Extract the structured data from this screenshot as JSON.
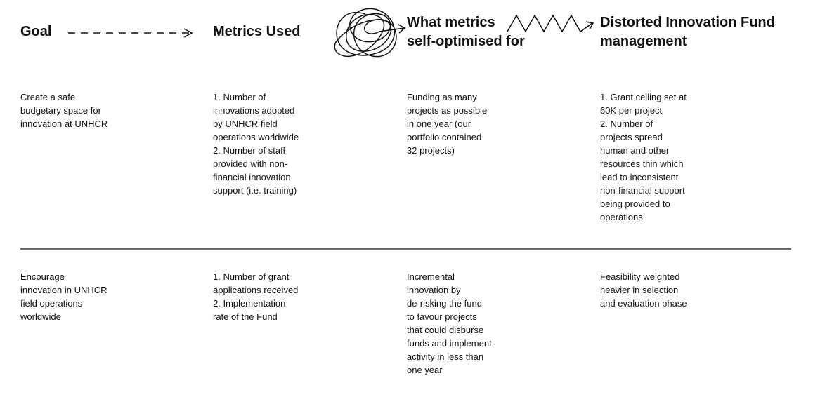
{
  "headers": [
    [
      "Goal"
    ],
    [
      "Metrics Used"
    ],
    [
      "What metrics",
      "self-optimised for"
    ],
    [
      "Distorted Innovation Fund",
      "management"
    ]
  ],
  "rows": [
    [
      [
        "Create a safe",
        "budgetary space for",
        "innovation at UNHCR"
      ],
      [
        "1. Number of",
        "innovations adopted",
        "by UNHCR field",
        "operations worldwide",
        "2. Number of staff",
        "provided with non-",
        "financial innovation",
        "support (i.e. training)"
      ],
      [
        "Funding as many",
        "projects as possible",
        "in one year (our",
        "portfolio contained",
        "32 projects)"
      ],
      [
        "1. Grant ceiling set at",
        "60K per project",
        "2. Number of",
        "projects spread",
        "human and other",
        "resources thin which",
        "lead to inconsistent",
        "non-financial support",
        "being provided to",
        "operations"
      ]
    ],
    [
      [
        "Encourage",
        "innovation in UNHCR",
        "field operations",
        "worldwide"
      ],
      [
        "1. Number of grant",
        "applications received",
        "2. Implementation",
        "rate of the Fund"
      ],
      [
        "Incremental",
        "innovation by",
        "de-risking the fund",
        "to favour projects",
        "that could disburse",
        "funds and implement",
        "activity in less than",
        "one year"
      ],
      [
        "Feasibility weighted",
        "heavier in selection",
        "and evaluation phase"
      ]
    ]
  ]
}
